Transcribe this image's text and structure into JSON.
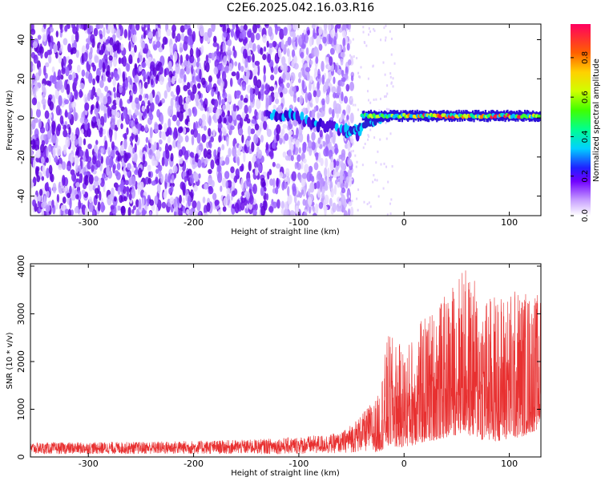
{
  "title": "C2E6.2025.042.16.03.R16",
  "chart_data": [
    {
      "type": "heatmap",
      "xlabel": "Height of straight line (km)",
      "ylabel": "Frequency (Hz)",
      "xlim": [
        -355,
        130
      ],
      "ylim": [
        -50,
        48
      ],
      "x_ticks": [
        -300,
        -200,
        -100,
        0,
        100
      ],
      "y_ticks": [
        -40,
        -20,
        0,
        20,
        40
      ],
      "colorbar": {
        "label": "Normalized spectral amplitude",
        "range": [
          0,
          0.97
        ],
        "ticks": [
          0.0,
          0.2,
          0.4,
          0.6,
          0.8
        ]
      },
      "regions": [
        {
          "x_range": [
            -355,
            -55
          ],
          "description_value": "broadband noise",
          "amplitude": 0.15
        },
        {
          "x_range": [
            -130,
            -40
          ],
          "freq_center": [
            3,
            -8
          ],
          "amplitude": 0.3
        },
        {
          "x_range": [
            -40,
            130
          ],
          "freq_center": 1,
          "amplitude": 0.7
        }
      ]
    },
    {
      "type": "line",
      "xlabel": "Height of straight line (km)",
      "ylabel": "SNR (10 * v/v)",
      "xlim": [
        -355,
        130
      ],
      "ylim": [
        0,
        4050
      ],
      "x_ticks": [
        -300,
        -200,
        -100,
        0,
        100
      ],
      "y_ticks": [
        0,
        1000,
        2000,
        3000,
        4000
      ],
      "series_color": "#e83030",
      "envelope": [
        {
          "x": -355,
          "low": 60,
          "high": 300
        },
        {
          "x": -250,
          "low": 60,
          "high": 320
        },
        {
          "x": -150,
          "low": 60,
          "high": 360
        },
        {
          "x": -100,
          "low": 60,
          "high": 420
        },
        {
          "x": -60,
          "low": 80,
          "high": 500
        },
        {
          "x": -40,
          "low": 100,
          "high": 900
        },
        {
          "x": -25,
          "low": 100,
          "high": 1300
        },
        {
          "x": -15,
          "low": 200,
          "high": 2600
        },
        {
          "x": 0,
          "low": 200,
          "high": 2300
        },
        {
          "x": 20,
          "low": 300,
          "high": 3000
        },
        {
          "x": 40,
          "low": 400,
          "high": 3400
        },
        {
          "x": 55,
          "low": 500,
          "high": 4050
        },
        {
          "x": 80,
          "low": 300,
          "high": 3400
        },
        {
          "x": 110,
          "low": 400,
          "high": 3600
        },
        {
          "x": 130,
          "low": 600,
          "high": 3400
        }
      ]
    }
  ]
}
